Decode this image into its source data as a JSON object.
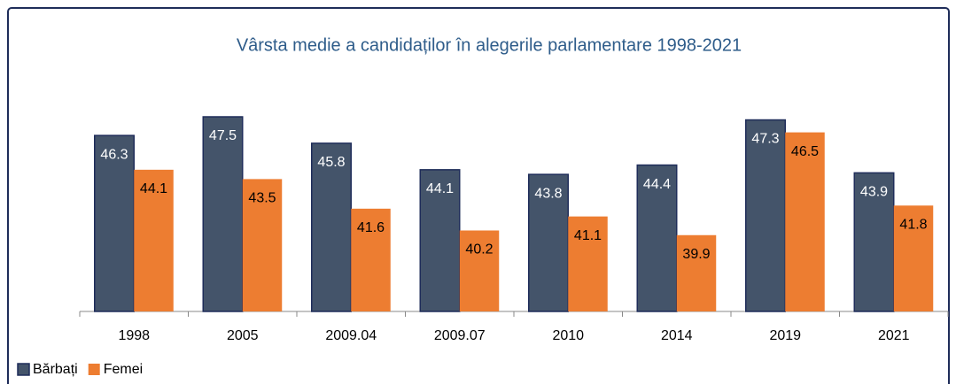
{
  "chart_data": {
    "type": "bar",
    "title": "Vârsta medie a candidaților în alegerile parlamentare 1998-2021",
    "categories": [
      "1998",
      "2005",
      "2009.04",
      "2009.07",
      "2010",
      "2014",
      "2019",
      "2021"
    ],
    "series": [
      {
        "name": "Bărbați",
        "color": "#44546a",
        "values": [
          46.3,
          47.5,
          45.8,
          44.1,
          43.8,
          44.4,
          47.3,
          43.9
        ]
      },
      {
        "name": "Femei",
        "color": "#ed7d31",
        "values": [
          44.1,
          43.5,
          41.6,
          40.2,
          41.1,
          39.9,
          46.5,
          41.8
        ]
      }
    ],
    "ylim": [
      35,
      50
    ],
    "legend": "bottom-left"
  }
}
